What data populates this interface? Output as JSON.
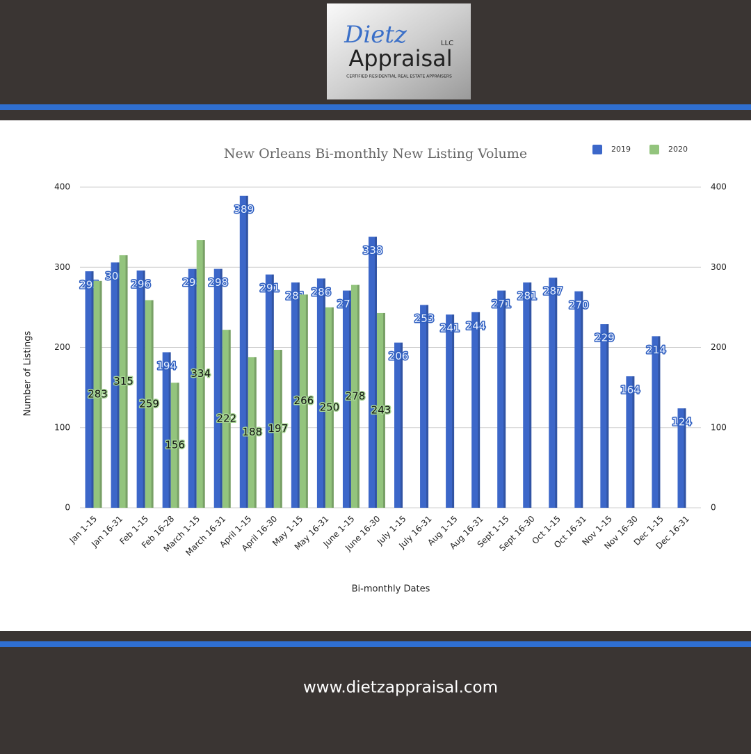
{
  "header": {
    "brand": "Dietz",
    "name": "Appraisal",
    "suffix": "LLC",
    "tagline": "CERTIFIED RESIDENTIAL REAL ESTATE APPRAISERS"
  },
  "footer": {
    "url": "www.dietzappraisal.com"
  },
  "chart_data": {
    "type": "bar",
    "title": "New Orleans Bi-monthly New Listing Volume",
    "x_label": "Bi-monthly Dates",
    "y_label": "Number of Listings",
    "categories": [
      "Jan 1-15",
      "Jan 16-31",
      "Feb 1-15",
      "Feb 16-28",
      "March 1-15",
      "March 16-31",
      "April 1-15",
      "April 16-30",
      "May 1-15",
      "May 16-31",
      "June 1-15",
      "June 16-30",
      "July 1-15",
      "July 16-31",
      "Aug 1-15",
      "Aug 16-31",
      "Sept 1-15",
      "Sept 16-30",
      "Oct 1-15",
      "Oct 16-31",
      "Nov 1-15",
      "Nov 16-30",
      "Dec 1-15",
      "Dec 16-31"
    ],
    "series": [
      {
        "name": "2019",
        "color": "#3c67c9",
        "values": [
          295,
          306,
          296,
          194,
          298,
          298,
          389,
          291,
          281,
          286,
          271,
          338,
          206,
          253,
          241,
          244,
          271,
          281,
          287,
          270,
          229,
          164,
          214,
          124
        ]
      },
      {
        "name": "2020",
        "color": "#93c47d",
        "values": [
          283,
          315,
          259,
          156,
          334,
          222,
          188,
          197,
          266,
          250,
          278,
          243,
          null,
          null,
          null,
          null,
          null,
          null,
          null,
          null,
          null,
          null,
          null,
          null
        ]
      }
    ],
    "ylim": [
      0,
      400
    ],
    "yticks": [
      0,
      100,
      200,
      300,
      400
    ],
    "y2lim": [
      0,
      400
    ],
    "y2ticks": [
      0,
      100,
      200,
      300,
      400
    ],
    "grid": true,
    "legend": "top-right"
  }
}
